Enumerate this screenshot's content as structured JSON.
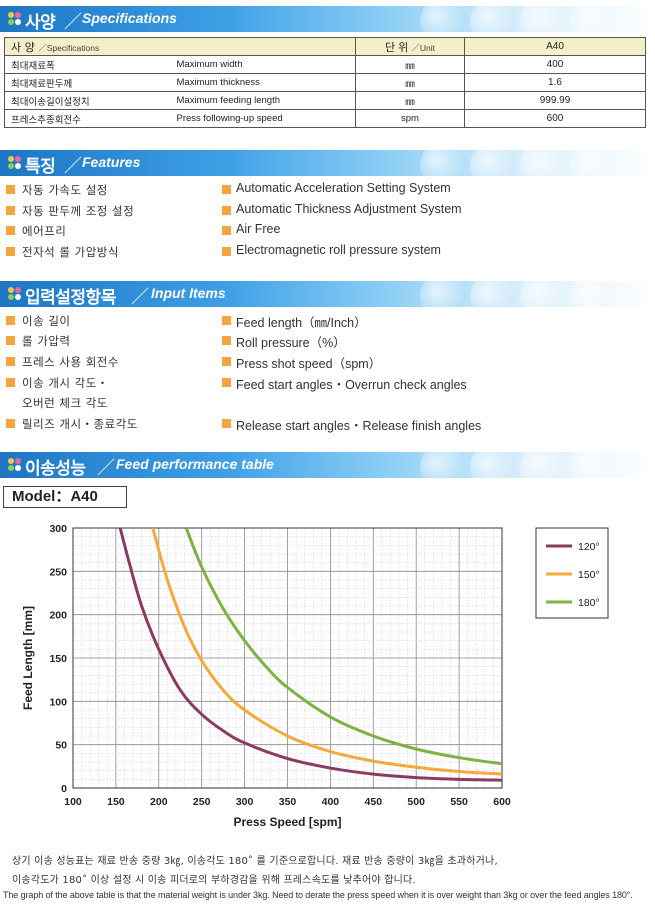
{
  "sections": {
    "spec": {
      "title_ko": "사양",
      "title_en": "Specifications"
    },
    "features": {
      "title_ko": "특징",
      "title_en": "Features"
    },
    "input": {
      "title_ko": "입력설정항목",
      "title_en": "Input Items"
    },
    "feed": {
      "title_ko": "이송성능",
      "title_en": "Feed performance table"
    }
  },
  "spec_table": {
    "header": {
      "item_ko": "사 양",
      "item_en": "／Specifications",
      "unit_ko": "단 위",
      "unit_en": "／Unit",
      "model": "A40"
    },
    "rows": [
      {
        "ko": "최대재료폭",
        "en": "Maximum width",
        "unit": "㎜",
        "value": "400"
      },
      {
        "ko": "최대재료판두께",
        "en": "Maximum thickness",
        "unit": "㎜",
        "value": "1.6"
      },
      {
        "ko": "최대이송길이설정치",
        "en": "Maximum feeding length",
        "unit": "㎜",
        "value": "999.99"
      },
      {
        "ko": "프레스추종회전수",
        "en": "Press following-up speed",
        "unit": "spm",
        "value": "600"
      }
    ]
  },
  "features": [
    {
      "ko": "자동 가속도 설정",
      "en": "Automatic Acceleration Setting System"
    },
    {
      "ko": "자동 판두께 조정 설정",
      "en": "Automatic Thickness Adjustment System"
    },
    {
      "ko": "에어프리",
      "en": "Air Free"
    },
    {
      "ko": "전자석 롤 가압방식",
      "en": "Electromagnetic roll pressure system"
    }
  ],
  "input_items": [
    {
      "ko": "이송 길이",
      "en": "Feed length（㎜/Inch）"
    },
    {
      "ko": "롤 가압력",
      "en": "Roll pressure（%）"
    },
    {
      "ko": "프레스 사용 회전수",
      "en": "Press shot speed（spm）"
    },
    {
      "ko": "이송 개시 각도・",
      "ko2": "오버런 체크 각도",
      "en": "Feed start angles・Overrun check angles"
    },
    {
      "ko": "릴리즈 개시・종료각도",
      "en": "Release start angles・Release finish angles"
    }
  ],
  "model_label": "Model：A40",
  "chart_data": {
    "type": "line",
    "xlabel": "Press Speed [spm]",
    "ylabel": "Feed Length [mm]",
    "xlim": [
      100,
      600
    ],
    "ylim": [
      0,
      300
    ],
    "x_ticks": [
      100,
      150,
      200,
      250,
      300,
      350,
      400,
      450,
      500,
      550,
      600
    ],
    "y_ticks": [
      0,
      50,
      100,
      150,
      200,
      250,
      300
    ],
    "grid": true,
    "legend_position": "top-right",
    "series": [
      {
        "name": "120°",
        "color": "#8b3a62",
        "x": [
          155,
          165,
          180,
          200,
          225,
          250,
          275,
          300,
          350,
          400,
          450,
          500,
          550,
          600
        ],
        "y": [
          300,
          262,
          210,
          160,
          113,
          85,
          66,
          52,
          34,
          23,
          16,
          12,
          10,
          9
        ]
      },
      {
        "name": "150°",
        "color": "#f5a93b",
        "x": [
          193,
          210,
          230,
          250,
          275,
          300,
          350,
          400,
          450,
          500,
          550,
          600
        ],
        "y": [
          300,
          240,
          186,
          147,
          113,
          90,
          60,
          42,
          31,
          24,
          19,
          16
        ]
      },
      {
        "name": "180°",
        "color": "#7cb342",
        "x": [
          232,
          250,
          275,
          300,
          325,
          350,
          400,
          450,
          500,
          550,
          600
        ],
        "y": [
          300,
          255,
          207,
          170,
          140,
          116,
          82,
          60,
          45,
          35,
          28
        ]
      }
    ]
  },
  "notes": {
    "ko1": "상기 이송 성능표는 재료 반송 중량 3㎏, 이송각도 180˚ 를 기준으로합니다. 재료 반송 중량이 3㎏을 초과하거나,",
    "ko2": "이송각도가 180˚ 이상 설정 시 이송 피더로의 부하경감을 위해 프레스속도를 낮추어야 합니다.",
    "en": "The graph of the above table is that the material weight is under 3kg. Need to derate the press speed when it is over weight than 3kg or over the feed angles 180°."
  },
  "colors": {
    "accent_orange": "#f4a540",
    "band_blue": "#1d76c4",
    "table_head": "#f3efc8"
  }
}
